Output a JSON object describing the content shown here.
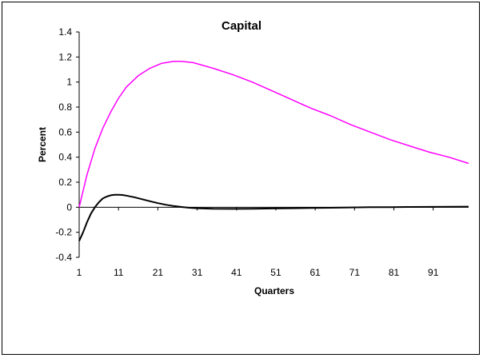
{
  "chart_data": {
    "type": "line",
    "title": "Capital",
    "xlabel": "Quarters",
    "ylabel": "Percent",
    "xlim": [
      1,
      100
    ],
    "ylim": [
      -0.4,
      1.4
    ],
    "xticks": [
      1,
      11,
      21,
      31,
      41,
      51,
      61,
      71,
      81,
      91
    ],
    "yticks": [
      -0.4,
      -0.2,
      0,
      0.2,
      0.4,
      0.6,
      0.8,
      1,
      1.2,
      1.4
    ],
    "ytick_labels": [
      "-0.4",
      "-0.2",
      "0",
      "0.2",
      "0.4",
      "0.6",
      "0.8",
      "1",
      "1.2",
      "1.4"
    ],
    "grid": false,
    "series": [
      {
        "color": "#ff00ff",
        "x": [
          1,
          3,
          5,
          7,
          9,
          11,
          13,
          16,
          19,
          22,
          25,
          27,
          30,
          35,
          40,
          45,
          50,
          55,
          60,
          65,
          70,
          75,
          80,
          85,
          90,
          95,
          100
        ],
        "values": [
          0.0,
          0.26,
          0.47,
          0.63,
          0.76,
          0.87,
          0.96,
          1.05,
          1.11,
          1.15,
          1.165,
          1.165,
          1.155,
          1.11,
          1.06,
          1.0,
          0.93,
          0.86,
          0.79,
          0.73,
          0.66,
          0.6,
          0.54,
          0.49,
          0.44,
          0.4,
          0.35
        ]
      },
      {
        "color": "#000000",
        "x": [
          1,
          2,
          3,
          4,
          5,
          6,
          7,
          8,
          9,
          10,
          11,
          12,
          13,
          15,
          17,
          19,
          21,
          23,
          25,
          27,
          29,
          31,
          35,
          40,
          45,
          50,
          55,
          60,
          65,
          70,
          75,
          80,
          85,
          90,
          95,
          100
        ],
        "values": [
          -0.27,
          -0.2,
          -0.12,
          -0.05,
          0.0,
          0.04,
          0.07,
          0.085,
          0.095,
          0.1,
          0.1,
          0.098,
          0.093,
          0.08,
          0.064,
          0.048,
          0.033,
          0.02,
          0.01,
          0.002,
          -0.004,
          -0.008,
          -0.012,
          -0.013,
          -0.012,
          -0.01,
          -0.008,
          -0.006,
          -0.004,
          -0.002,
          0.0,
          0.001,
          0.002,
          0.003,
          0.004,
          0.005
        ]
      }
    ]
  }
}
